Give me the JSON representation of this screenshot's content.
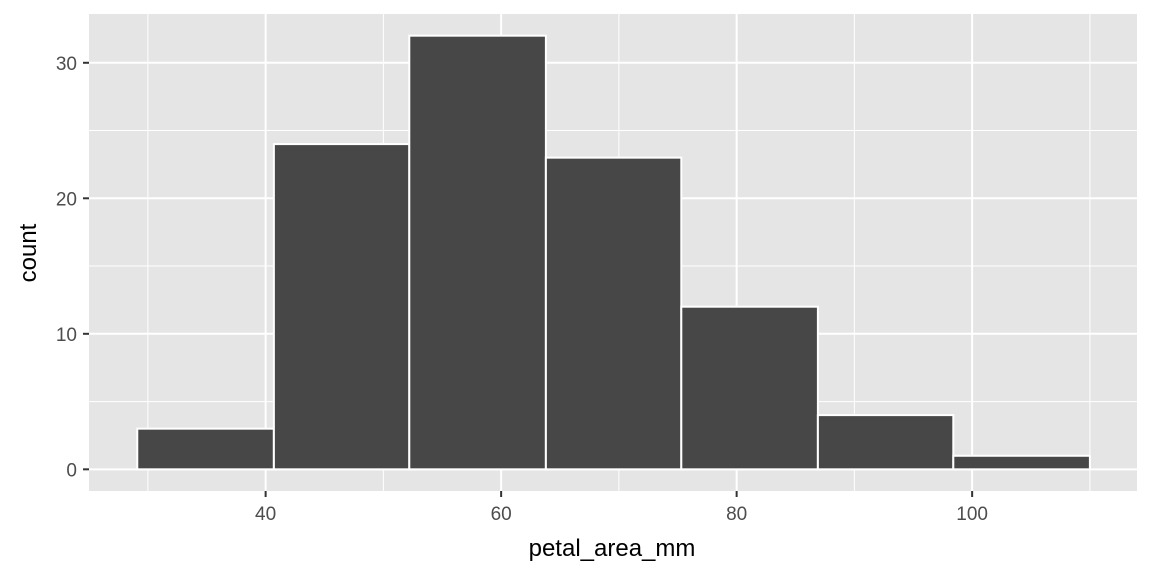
{
  "chart_data": {
    "type": "bar",
    "subtype": "histogram",
    "title": "",
    "xlabel": "petal_area_mm",
    "ylabel": "count",
    "bins": [
      {
        "x0": 29.1,
        "x1": 40.7,
        "count": 3
      },
      {
        "x0": 40.7,
        "x1": 52.2,
        "count": 24
      },
      {
        "x0": 52.2,
        "x1": 63.8,
        "count": 32
      },
      {
        "x0": 63.8,
        "x1": 75.3,
        "count": 23
      },
      {
        "x0": 75.3,
        "x1": 86.9,
        "count": 12
      },
      {
        "x0": 86.9,
        "x1": 98.4,
        "count": 4
      },
      {
        "x0": 98.4,
        "x1": 110.0,
        "count": 1
      }
    ],
    "xlim": [
      25.0,
      114.0
    ],
    "ylim": [
      -1.6,
      33.6
    ],
    "x_ticks": [
      40,
      60,
      80,
      100
    ],
    "x_tick_labels": [
      "40",
      "60",
      "80",
      "100"
    ],
    "y_ticks": [
      0,
      10,
      20,
      30
    ],
    "y_tick_labels": [
      "0",
      "10",
      "20",
      "30"
    ],
    "grid": true,
    "legend": "none",
    "colors": {
      "panel_background": "#e5e5e5",
      "grid": "#ffffff",
      "bar_fill": "#474747",
      "bar_outline": "#ffffff",
      "tick_label": "#4d4d4d",
      "tick_mark": "#333333",
      "axis_title": "#000000"
    }
  }
}
